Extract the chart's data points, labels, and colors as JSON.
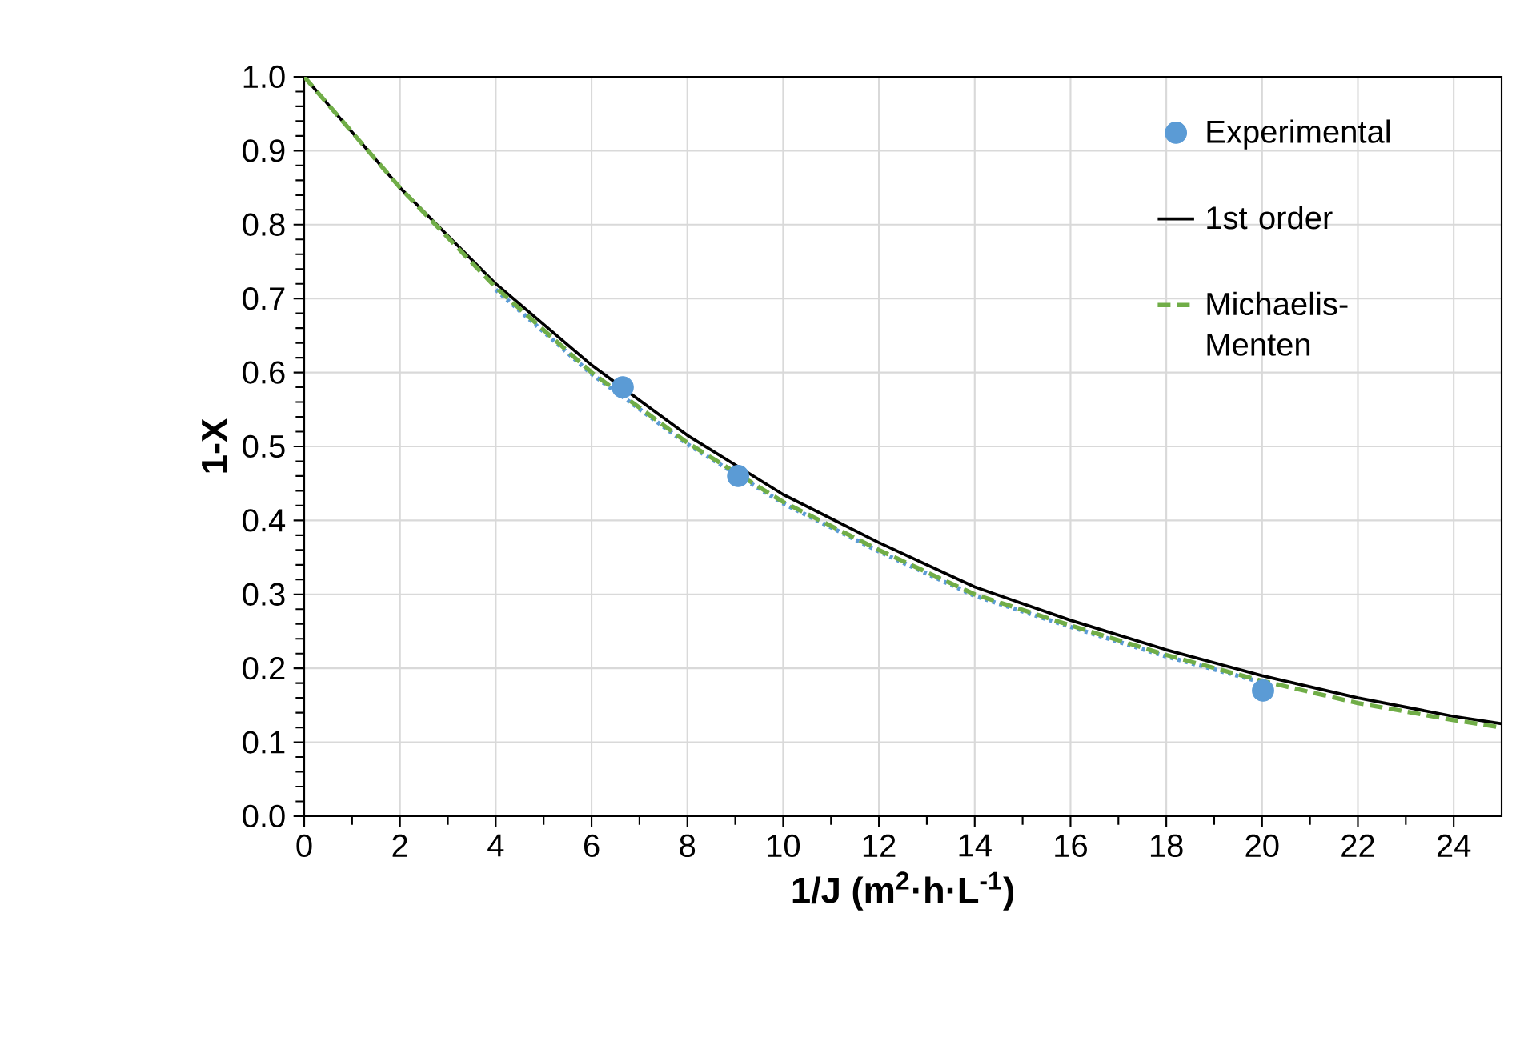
{
  "chart_data": {
    "type": "line",
    "xlabel": "1/J (m$^{2}$·h·L$^{-1}$)",
    "ylabel": "1-X",
    "xlim": [
      0,
      25
    ],
    "xticks": [
      0,
      2,
      4,
      6,
      8,
      10,
      12,
      14,
      16,
      18,
      20,
      22,
      24
    ],
    "ylim": [
      0,
      1
    ],
    "yticks": [
      {
        "value": 0,
        "label": "0.0"
      },
      {
        "value": 0.1,
        "label": "0.1"
      },
      {
        "value": 0.2,
        "label": "0.2"
      },
      {
        "value": 0.3,
        "label": "0.3"
      },
      {
        "value": 0.4,
        "label": "0.4"
      },
      {
        "value": 0.5,
        "label": "0.5"
      },
      {
        "value": 0.6,
        "label": "0.6"
      },
      {
        "value": 0.7,
        "label": "0.7"
      },
      {
        "value": 0.8,
        "label": "0.8"
      },
      {
        "value": 0.9,
        "label": "0.9"
      },
      {
        "value": 1,
        "label": "1.0"
      }
    ],
    "grid": true,
    "legend": "top right",
    "series": [
      {
        "name": "Experimental",
        "type": "scatter",
        "marker": "circle",
        "color": "#5b9bd5",
        "x": [
          6.65,
          9.06,
          20.02
        ],
        "values": [
          0.58,
          0.46,
          0.17
        ]
      },
      {
        "name": "1st order",
        "line_style": "solid",
        "color": "#000000",
        "x": [
          0,
          2,
          4,
          6,
          8,
          10,
          12,
          14,
          16,
          18,
          20,
          22,
          24,
          25
        ],
        "values": [
          1.0,
          0.85,
          0.72,
          0.61,
          0.515,
          0.435,
          0.37,
          0.31,
          0.265,
          0.225,
          0.19,
          0.16,
          0.135,
          0.125
        ]
      },
      {
        "name": "Michaelis-Menten",
        "line_style": "dashed",
        "color": "#70ad47",
        "x": [
          0,
          2,
          4,
          6,
          8,
          10,
          12,
          14,
          16,
          18,
          20,
          22,
          24,
          25
        ],
        "values": [
          1.0,
          0.85,
          0.715,
          0.6,
          0.505,
          0.425,
          0.36,
          0.3,
          0.258,
          0.218,
          0.183,
          0.153,
          0.13,
          0.12
        ]
      },
      {
        "line_style": "dotted",
        "color": "#5b9bd5",
        "x": [
          4,
          6,
          8,
          10,
          12,
          14,
          16,
          18,
          20
        ],
        "values": [
          0.712,
          0.598,
          0.503,
          0.423,
          0.358,
          0.298,
          0.256,
          0.216,
          0.181
        ]
      }
    ]
  }
}
